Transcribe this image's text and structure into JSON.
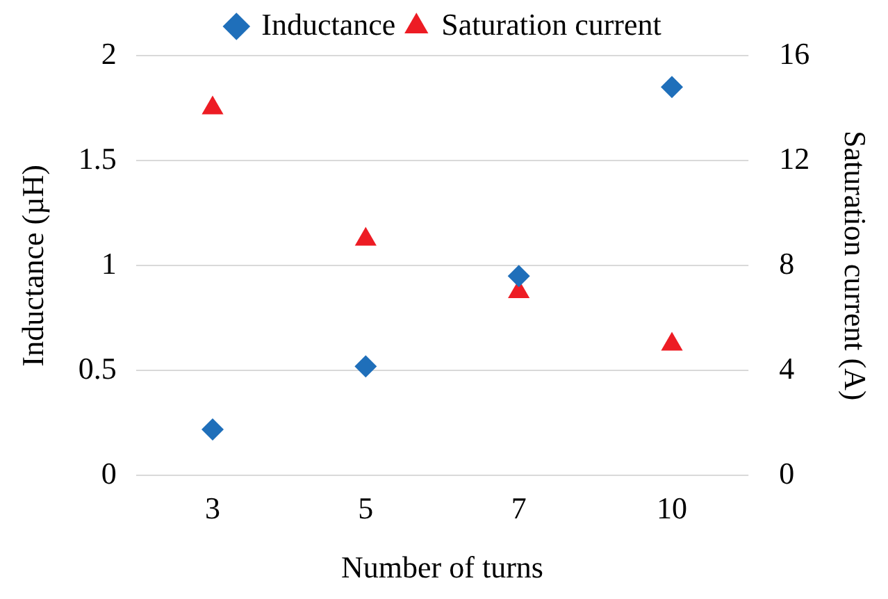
{
  "chart_data": {
    "type": "scatter",
    "xlabel": "Number of turns",
    "ylabel": "Inductance (µH)",
    "y2label": "Saturation current (A)",
    "categories": [
      "3",
      "5",
      "7",
      "10"
    ],
    "series": [
      {
        "name": "Inductance",
        "color": "#1f6fba",
        "marker": "diamond",
        "values": [
          0.22,
          0.52,
          0.95,
          1.85
        ]
      },
      {
        "name": "Saturation current",
        "color": "#ed1c24",
        "marker": "triangle",
        "axis": "y2",
        "values": [
          14,
          9,
          7,
          5
        ]
      }
    ],
    "ylim": [
      0,
      2
    ],
    "yticks": [
      0,
      0.5,
      1,
      1.5,
      2
    ],
    "y2lim": [
      0,
      16
    ],
    "y2ticks": [
      0,
      4,
      8,
      12,
      16
    ],
    "grid": "y",
    "legend": "top"
  }
}
